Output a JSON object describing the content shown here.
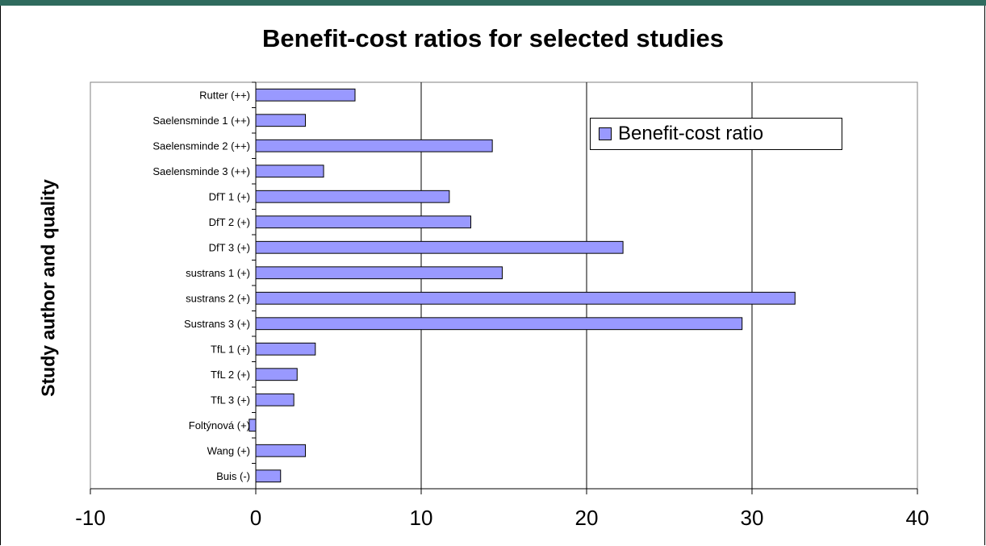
{
  "chart_data": {
    "type": "bar",
    "orientation": "horizontal",
    "title": "Benefit-cost ratios for selected studies",
    "xlabel": "",
    "ylabel": "Study author and quality",
    "categories": [
      "Rutter (++)",
      "Saelensminde 1 (++)",
      "Saelensminde 2 (++)",
      "Saelensminde 3 (++)",
      "DfT 1 (+)",
      "DfT 2 (+)",
      "DfT 3 (+)",
      "sustrans 1 (+)",
      "sustrans 2 (+)",
      "Sustrans 3 (+)",
      "TfL 1 (+)",
      "TfL  2 (+)",
      "TfL 3 (+)",
      "Foltýnová (+)",
      "Wang (+)",
      "Buis (-)"
    ],
    "series": [
      {
        "name": "Benefit-cost ratio",
        "values": [
          6.0,
          3.0,
          14.3,
          4.1,
          11.7,
          13.0,
          22.2,
          14.9,
          32.6,
          29.4,
          3.6,
          2.5,
          2.3,
          -0.4,
          3.0,
          1.5
        ]
      }
    ],
    "xlim": [
      -10,
      40
    ],
    "xticks": [
      "-10",
      "0",
      "10",
      "20",
      "30",
      "40"
    ],
    "grid": "vertical major gridlines",
    "legend_position": "top-right",
    "bar_color": "#9999ff"
  }
}
